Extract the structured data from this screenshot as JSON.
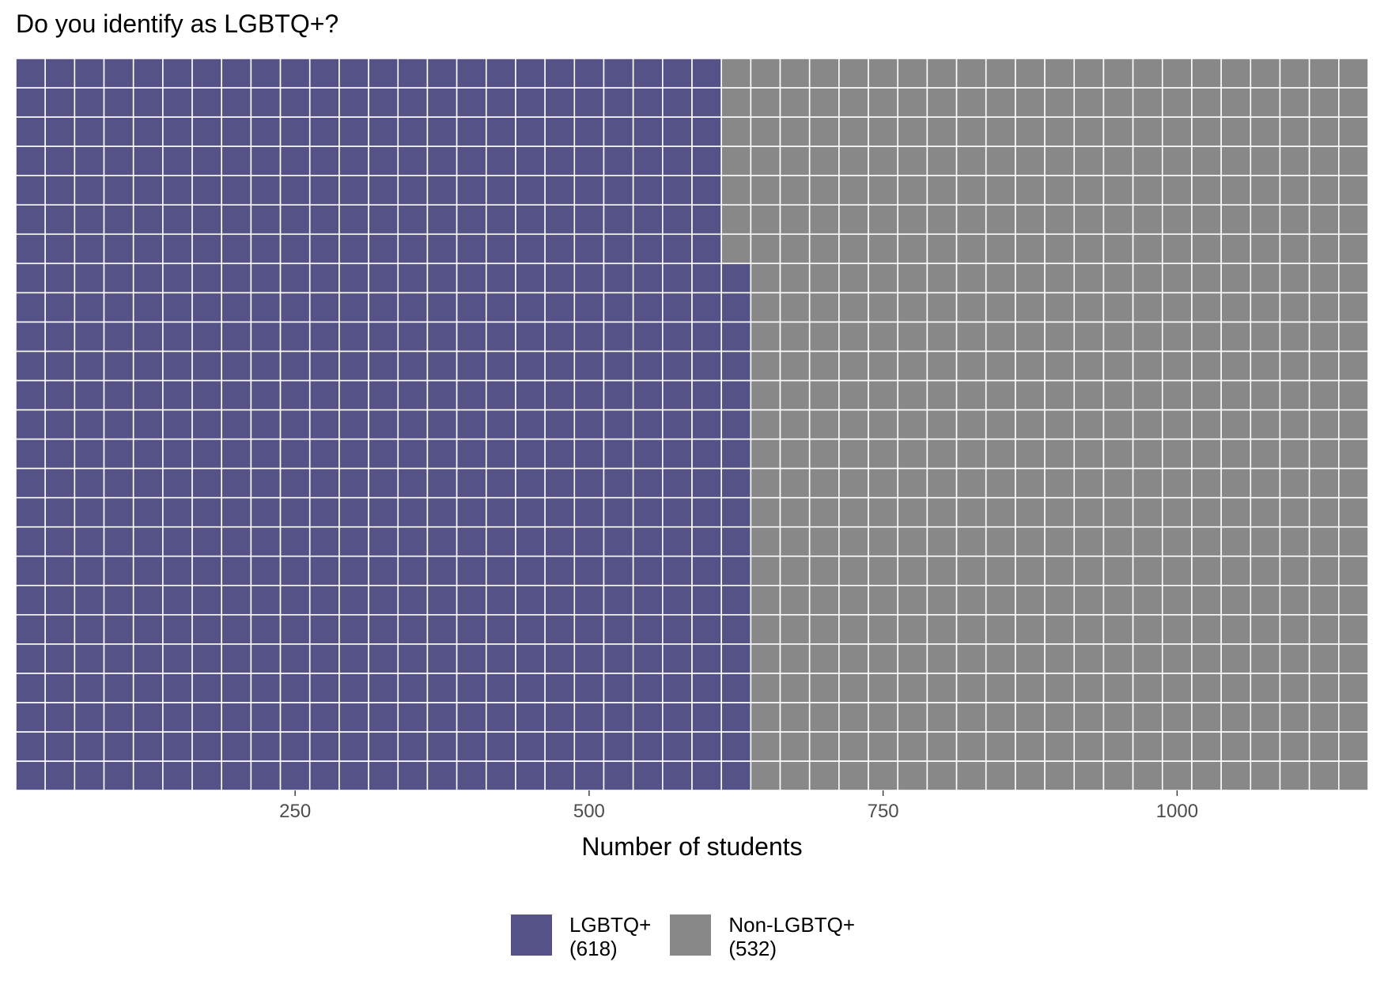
{
  "chart_data": {
    "type": "waffle",
    "title": "Do you identify as LGBTQ+?",
    "xlabel": "Number of students",
    "units_per_column": 25,
    "rows": 25,
    "series": [
      {
        "name": "LGBTQ+",
        "count_label": "(618)",
        "value": 618,
        "color": "#555287"
      },
      {
        "name": "Non-LGBTQ+",
        "count_label": "(532)",
        "value": 532,
        "color": "#888888"
      }
    ],
    "x_ticks": [
      250,
      500,
      750,
      1000
    ],
    "x_tick_labels": [
      "250",
      "500",
      "750",
      "1000"
    ],
    "xlim": [
      0,
      1150
    ],
    "grid": false,
    "legend_position": "bottom"
  }
}
